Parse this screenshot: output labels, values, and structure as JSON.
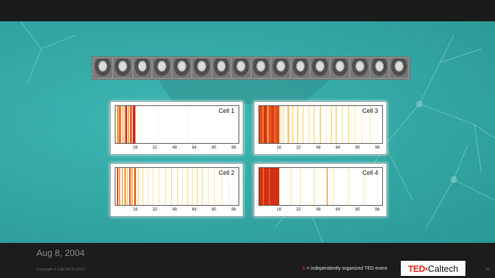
{
  "slide": {
    "date": "Aug 8, 2004",
    "copyright": "Copyright © CALTECH 2013",
    "page_number": "26"
  },
  "branding": {
    "strap_x": "x",
    "strap_equals": " = ",
    "strap_text": "independently organized TED event",
    "logo_ted": "TED",
    "logo_x": "x",
    "logo_name": "Caltech"
  },
  "faces": {
    "count": 16,
    "icon": "face-photo-icon"
  },
  "colors": {
    "accent_red": "#e62b1e",
    "teal": "#35aaa7"
  },
  "chart_data": [
    {
      "type": "heatmap",
      "title": "Cell 1",
      "x_ticks": [
        "16",
        "32",
        "48",
        "64",
        "80",
        "96"
      ],
      "xlim": [
        0,
        100
      ],
      "stripes": [
        {
          "x": 1,
          "w": 1,
          "v": 0.55
        },
        {
          "x": 2,
          "w": 1,
          "v": 0.45
        },
        {
          "x": 3,
          "w": 1.5,
          "v": 0.7
        },
        {
          "x": 5,
          "w": 1,
          "v": 0.35
        },
        {
          "x": 6.5,
          "w": 1,
          "v": 0.6
        },
        {
          "x": 8,
          "w": 1.5,
          "v": 0.9
        },
        {
          "x": 10,
          "w": 1,
          "v": 0.5
        },
        {
          "x": 12,
          "w": 1.5,
          "v": 0.75
        },
        {
          "x": 14,
          "w": 2,
          "v": 0.95
        },
        {
          "x": 20,
          "w": 0.6,
          "v": 0.05
        },
        {
          "x": 34,
          "w": 0.6,
          "v": 0.05
        },
        {
          "x": 58,
          "w": 0.6,
          "v": 0.04
        }
      ]
    },
    {
      "type": "heatmap",
      "title": "Cell 2",
      "x_ticks": [
        "16",
        "32",
        "48",
        "64",
        "80",
        "96"
      ],
      "xlim": [
        0,
        100
      ],
      "stripes": [
        {
          "x": 1,
          "w": 1.5,
          "v": 0.85
        },
        {
          "x": 3,
          "w": 1,
          "v": 0.55
        },
        {
          "x": 5,
          "w": 1,
          "v": 0.4
        },
        {
          "x": 7,
          "w": 1.5,
          "v": 0.6
        },
        {
          "x": 9,
          "w": 1,
          "v": 0.3
        },
        {
          "x": 11,
          "w": 1.5,
          "v": 0.8
        },
        {
          "x": 13,
          "w": 1,
          "v": 0.5
        },
        {
          "x": 15,
          "w": 1.5,
          "v": 0.7
        },
        {
          "x": 18,
          "w": 1,
          "v": 0.25
        },
        {
          "x": 22,
          "w": 1,
          "v": 0.15
        },
        {
          "x": 26,
          "w": 1,
          "v": 0.2
        },
        {
          "x": 30,
          "w": 1,
          "v": 0.18
        },
        {
          "x": 35,
          "w": 1,
          "v": 0.22
        },
        {
          "x": 40,
          "w": 1,
          "v": 0.25
        },
        {
          "x": 45,
          "w": 1,
          "v": 0.3
        },
        {
          "x": 50,
          "w": 1,
          "v": 0.28
        },
        {
          "x": 54,
          "w": 1,
          "v": 0.15
        },
        {
          "x": 58,
          "w": 1,
          "v": 0.18
        },
        {
          "x": 62,
          "w": 1,
          "v": 0.12
        },
        {
          "x": 66,
          "w": 1,
          "v": 0.2
        },
        {
          "x": 70,
          "w": 1,
          "v": 0.15
        },
        {
          "x": 75,
          "w": 1,
          "v": 0.1
        },
        {
          "x": 80,
          "w": 1,
          "v": 0.12
        },
        {
          "x": 86,
          "w": 1,
          "v": 0.08
        },
        {
          "x": 92,
          "w": 1,
          "v": 0.1
        }
      ]
    },
    {
      "type": "heatmap",
      "title": "Cell 3",
      "x_ticks": [
        "16",
        "32",
        "48",
        "64",
        "80",
        "96"
      ],
      "xlim": [
        0,
        100
      ],
      "stripes": [
        {
          "x": 0,
          "w": 2,
          "v": 0.85
        },
        {
          "x": 2,
          "w": 2,
          "v": 0.7
        },
        {
          "x": 4,
          "w": 2,
          "v": 0.95
        },
        {
          "x": 6,
          "w": 2,
          "v": 0.6
        },
        {
          "x": 8,
          "w": 2,
          "v": 0.8
        },
        {
          "x": 10,
          "w": 2,
          "v": 0.9
        },
        {
          "x": 12,
          "w": 2,
          "v": 0.75
        },
        {
          "x": 14,
          "w": 2,
          "v": 0.85
        },
        {
          "x": 16,
          "w": 1.5,
          "v": 0.3
        },
        {
          "x": 19,
          "w": 1,
          "v": 0.2
        },
        {
          "x": 23,
          "w": 1.5,
          "v": 0.35
        },
        {
          "x": 27,
          "w": 1,
          "v": 0.25
        },
        {
          "x": 31,
          "w": 1,
          "v": 0.3
        },
        {
          "x": 35,
          "w": 1.5,
          "v": 0.2
        },
        {
          "x": 40,
          "w": 1,
          "v": 0.28
        },
        {
          "x": 44,
          "w": 1,
          "v": 0.22
        },
        {
          "x": 49,
          "w": 1.5,
          "v": 0.32
        },
        {
          "x": 54,
          "w": 1,
          "v": 0.18
        },
        {
          "x": 58,
          "w": 1,
          "v": 0.25
        },
        {
          "x": 62,
          "w": 1,
          "v": 0.3
        },
        {
          "x": 67,
          "w": 1,
          "v": 0.15
        },
        {
          "x": 72,
          "w": 1,
          "v": 0.2
        },
        {
          "x": 77,
          "w": 1,
          "v": 0.12
        },
        {
          "x": 83,
          "w": 1,
          "v": 0.15
        },
        {
          "x": 90,
          "w": 1,
          "v": 0.1
        }
      ]
    },
    {
      "type": "heatmap",
      "title": "Cell 4",
      "x_ticks": [
        "16",
        "32",
        "48",
        "64",
        "80",
        "96"
      ],
      "xlim": [
        0,
        100
      ],
      "stripes": [
        {
          "x": 0,
          "w": 16,
          "v": 0.95
        },
        {
          "x": 3,
          "w": 1,
          "v": 0.75
        },
        {
          "x": 8,
          "w": 1,
          "v": 0.8
        },
        {
          "x": 16,
          "w": 1,
          "v": 0.2
        },
        {
          "x": 25,
          "w": 1,
          "v": 0.12
        },
        {
          "x": 33,
          "w": 1,
          "v": 0.1
        },
        {
          "x": 44,
          "w": 1,
          "v": 0.15
        },
        {
          "x": 55,
          "w": 1,
          "v": 0.45
        },
        {
          "x": 60,
          "w": 1,
          "v": 0.1
        },
        {
          "x": 72,
          "w": 1,
          "v": 0.08
        },
        {
          "x": 85,
          "w": 1,
          "v": 0.08
        }
      ]
    }
  ]
}
